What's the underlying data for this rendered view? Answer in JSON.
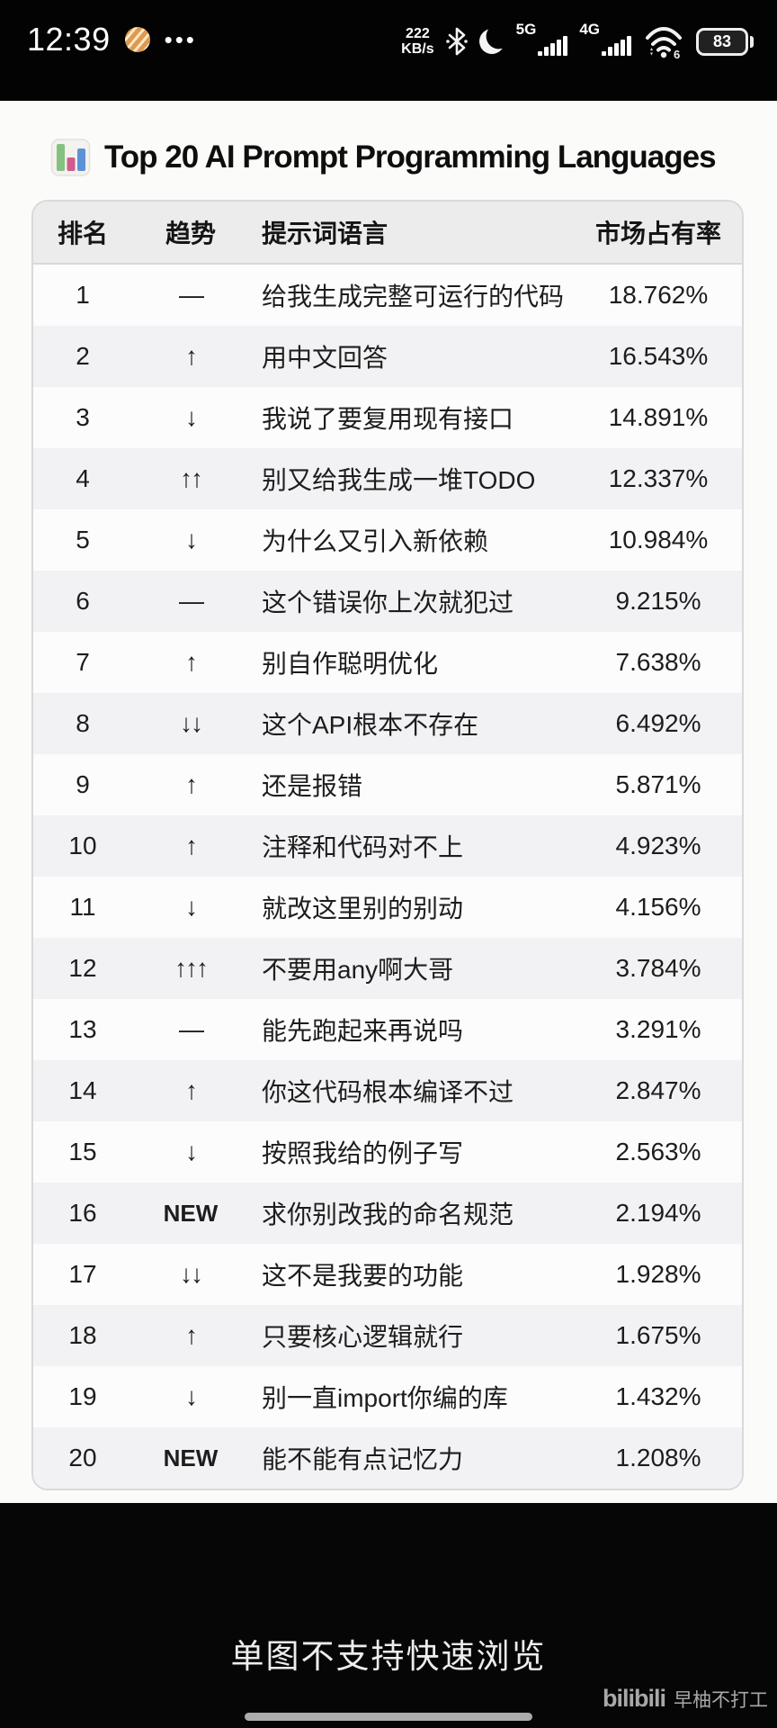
{
  "status_bar": {
    "time": "12:39",
    "more_dots": "•••",
    "net_speed_value": "222",
    "net_speed_unit": "KB/s",
    "network_5g": "5G",
    "network_4g": "4G",
    "wifi_standard": "6",
    "battery_percent": "83"
  },
  "header": {
    "icon": "bar-chart-icon",
    "icon_colors": {
      "green": "#84c17f",
      "pink": "#d05c8c",
      "blue": "#5e92d6"
    },
    "title": "Top 20 AI Prompt Programming Languages"
  },
  "table": {
    "columns": [
      "排名",
      "趋势",
      "提示词语言",
      "市场占有率"
    ],
    "rows": [
      {
        "rank": "1",
        "trend": "—",
        "prompt": "给我生成完整可运行的代码",
        "share": "18.762%"
      },
      {
        "rank": "2",
        "trend": "↑",
        "prompt": "用中文回答",
        "share": "16.543%"
      },
      {
        "rank": "3",
        "trend": "↓",
        "prompt": "我说了要复用现有接口",
        "share": "14.891%"
      },
      {
        "rank": "4",
        "trend": "↑↑",
        "prompt": "别又给我生成一堆TODO",
        "share": "12.337%"
      },
      {
        "rank": "5",
        "trend": "↓",
        "prompt": "为什么又引入新依赖",
        "share": "10.984%"
      },
      {
        "rank": "6",
        "trend": "—",
        "prompt": "这个错误你上次就犯过",
        "share": "9.215%"
      },
      {
        "rank": "7",
        "trend": "↑",
        "prompt": "别自作聪明优化",
        "share": "7.638%"
      },
      {
        "rank": "8",
        "trend": "↓↓",
        "prompt": "这个API根本不存在",
        "share": "6.492%"
      },
      {
        "rank": "9",
        "trend": "↑",
        "prompt": "还是报错",
        "share": "5.871%"
      },
      {
        "rank": "10",
        "trend": "↑",
        "prompt": "注释和代码对不上",
        "share": "4.923%"
      },
      {
        "rank": "11",
        "trend": "↓",
        "prompt": "就改这里别的别动",
        "share": "4.156%"
      },
      {
        "rank": "12",
        "trend": "↑↑↑",
        "prompt": "不要用any啊大哥",
        "share": "3.784%"
      },
      {
        "rank": "13",
        "trend": "—",
        "prompt": "能先跑起来再说吗",
        "share": "3.291%"
      },
      {
        "rank": "14",
        "trend": "↑",
        "prompt": "你这代码根本编译不过",
        "share": "2.847%"
      },
      {
        "rank": "15",
        "trend": "↓",
        "prompt": "按照我给的例子写",
        "share": "2.563%"
      },
      {
        "rank": "16",
        "trend": "NEW",
        "prompt": "求你别改我的命名规范",
        "share": "2.194%"
      },
      {
        "rank": "17",
        "trend": "↓↓",
        "prompt": "这不是我要的功能",
        "share": "1.928%"
      },
      {
        "rank": "18",
        "trend": "↑",
        "prompt": "只要核心逻辑就行",
        "share": "1.675%"
      },
      {
        "rank": "19",
        "trend": "↓",
        "prompt": "别一直import你编的库",
        "share": "1.432%"
      },
      {
        "rank": "20",
        "trend": "NEW",
        "prompt": "能不能有点记忆力",
        "share": "1.208%"
      }
    ]
  },
  "footer": {
    "caption": "单图不支持快速浏览",
    "watermark_logo": "bilibili",
    "watermark_name": "早柚不打工"
  }
}
